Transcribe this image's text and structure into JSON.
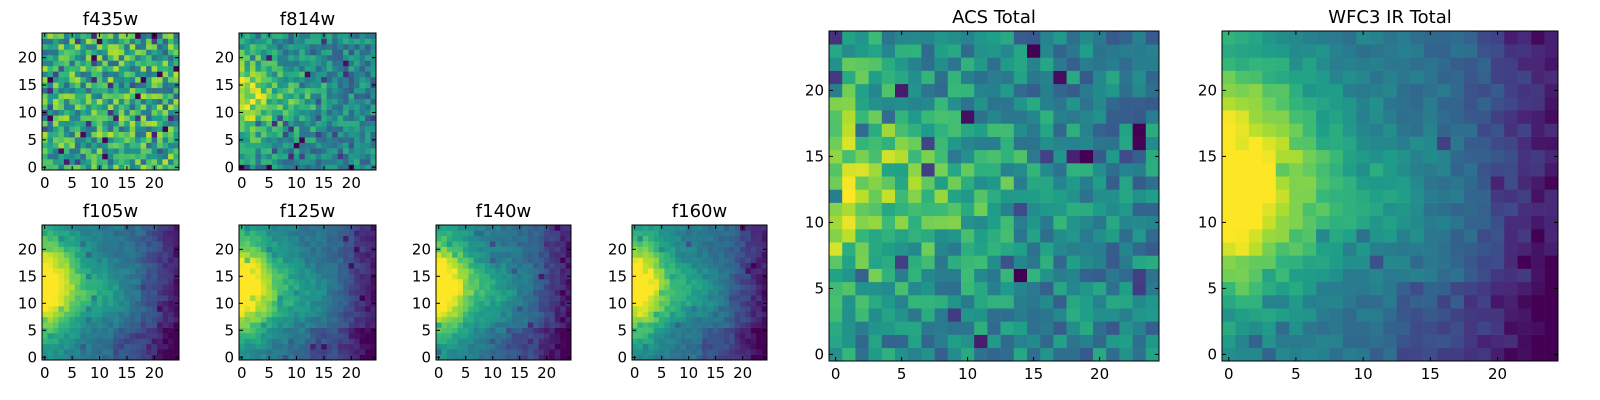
{
  "chart_data": [
    {
      "type": "heatmap",
      "title": "f435w",
      "xticks": [
        "0",
        "5",
        "10",
        "15",
        "20"
      ],
      "yticks": [
        "0",
        "5",
        "10",
        "15",
        "20"
      ],
      "xlim": [
        0,
        25
      ],
      "ylim": [
        0,
        25
      ],
      "grid": false,
      "colormap": "viridis",
      "pattern": "noisy-uniform"
    },
    {
      "type": "heatmap",
      "title": "f814w",
      "xticks": [
        "0",
        "5",
        "10",
        "15",
        "20"
      ],
      "yticks": [
        "0",
        "5",
        "10",
        "15",
        "20"
      ],
      "xlim": [
        0,
        25
      ],
      "ylim": [
        0,
        25
      ],
      "grid": false,
      "colormap": "viridis",
      "pattern": "left-bright-noisy"
    },
    {
      "type": "heatmap",
      "title": "f105w",
      "xticks": [
        "0",
        "5",
        "10",
        "15",
        "20"
      ],
      "yticks": [
        "0",
        "5",
        "10",
        "15",
        "20"
      ],
      "xlim": [
        0,
        25
      ],
      "ylim": [
        0,
        25
      ],
      "grid": false,
      "colormap": "viridis",
      "pattern": "left-bright-smooth"
    },
    {
      "type": "heatmap",
      "title": "f125w",
      "xticks": [
        "0",
        "5",
        "10",
        "15",
        "20"
      ],
      "yticks": [
        "0",
        "5",
        "10",
        "15",
        "20"
      ],
      "xlim": [
        0,
        25
      ],
      "ylim": [
        0,
        25
      ],
      "grid": false,
      "colormap": "viridis",
      "pattern": "left-bright-smooth"
    },
    {
      "type": "heatmap",
      "title": "f140w",
      "xticks": [
        "0",
        "5",
        "10",
        "15",
        "20"
      ],
      "yticks": [
        "0",
        "5",
        "10",
        "15",
        "20"
      ],
      "xlim": [
        0,
        25
      ],
      "ylim": [
        0,
        25
      ],
      "grid": false,
      "colormap": "viridis",
      "pattern": "left-bright-smooth"
    },
    {
      "type": "heatmap",
      "title": "f160w",
      "xticks": [
        "0",
        "5",
        "10",
        "15",
        "20"
      ],
      "yticks": [
        "0",
        "5",
        "10",
        "15",
        "20"
      ],
      "xlim": [
        0,
        25
      ],
      "ylim": [
        0,
        25
      ],
      "grid": false,
      "colormap": "viridis",
      "pattern": "left-bright-smooth"
    },
    {
      "type": "heatmap",
      "title": "ACS Total",
      "xticks": [
        "0",
        "5",
        "10",
        "15",
        "20"
      ],
      "yticks": [
        "0",
        "5",
        "10",
        "15",
        "20"
      ],
      "xlim": [
        0,
        25
      ],
      "ylim": [
        0,
        25
      ],
      "grid": false,
      "colormap": "viridis",
      "pattern": "left-bright-noisy"
    },
    {
      "type": "heatmap",
      "title": "WFC3 IR Total",
      "xticks": [
        "0",
        "5",
        "10",
        "15",
        "20"
      ],
      "yticks": [
        "0",
        "5",
        "10",
        "15",
        "20"
      ],
      "xlim": [
        0,
        25
      ],
      "ylim": [
        0,
        25
      ],
      "grid": false,
      "colormap": "viridis",
      "pattern": "left-bright-smooth"
    }
  ],
  "colors": {
    "viridis_low": "#440154",
    "viridis_mid": "#21918c",
    "viridis_high": "#fde725"
  }
}
